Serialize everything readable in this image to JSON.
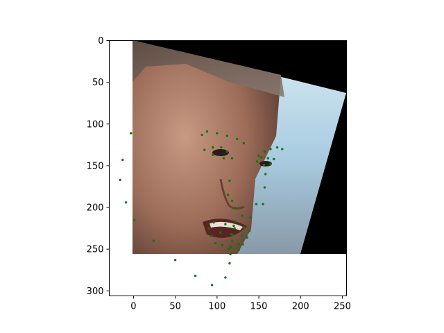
{
  "chart_data": {
    "type": "scatter",
    "title": "",
    "xlabel": "",
    "ylabel": "",
    "xlim": [
      -29,
      255
    ],
    "ylim": [
      306,
      0
    ],
    "y_inverted": true,
    "grid": false,
    "legend": "none",
    "x_ticks": [
      0,
      50,
      100,
      150,
      200,
      250
    ],
    "y_ticks": [
      0,
      50,
      100,
      150,
      200,
      250,
      300
    ],
    "background_image": {
      "description": "rotated face crop",
      "extent_x": [
        0,
        255
      ],
      "extent_y": [
        255,
        0
      ]
    },
    "marker_color": "#007f00",
    "series": [
      {
        "points": [
          [
            -3,
            111
          ],
          [
            -13,
            143
          ],
          [
            -16,
            167
          ],
          [
            -9,
            194
          ],
          [
            1,
            215
          ],
          [
            24,
            240
          ],
          [
            50,
            263
          ],
          [
            74,
            282
          ],
          [
            94,
            293
          ],
          [
            110,
            284
          ],
          [
            115,
            267
          ],
          [
            116,
            256
          ],
          [
            117,
            248
          ],
          [
            118,
            240
          ],
          [
            119,
            233
          ],
          [
            121,
            225
          ],
          [
            122,
            217
          ],
          [
            82,
            113
          ],
          [
            88,
            109
          ],
          [
            100,
            111
          ],
          [
            112,
            114
          ],
          [
            124,
            118
          ],
          [
            132,
            123
          ],
          [
            150,
            138
          ],
          [
            157,
            133
          ],
          [
            164,
            130
          ],
          [
            172,
            128
          ],
          [
            178,
            130
          ],
          [
            115,
            168
          ],
          [
            113,
            185
          ],
          [
            118,
            192
          ],
          [
            122,
            201
          ],
          [
            130,
            210
          ],
          [
            140,
            212
          ],
          [
            85,
            131
          ],
          [
            95,
            128
          ],
          [
            105,
            128
          ],
          [
            112,
            133
          ],
          [
            118,
            141
          ],
          [
            108,
            141
          ],
          [
            95,
            137
          ],
          [
            148,
            145
          ],
          [
            153,
            140
          ],
          [
            161,
            141
          ],
          [
            168,
            142
          ],
          [
            164,
            148
          ],
          [
            156,
            149
          ],
          [
            90,
            225
          ],
          [
            96,
            218
          ],
          [
            110,
            220
          ],
          [
            120,
            222
          ],
          [
            132,
            224
          ],
          [
            139,
            228
          ],
          [
            136,
            236
          ],
          [
            131,
            244
          ],
          [
            126,
            251
          ],
          [
            114,
            250
          ],
          [
            98,
            243
          ],
          [
            93,
            234
          ],
          [
            104,
            230
          ],
          [
            117,
            232
          ],
          [
            130,
            234
          ],
          [
            126,
            244
          ],
          [
            116,
            247
          ],
          [
            106,
            245
          ],
          [
            147,
            196
          ],
          [
            155,
            196
          ],
          [
            157,
            176
          ],
          [
            158,
            160
          ]
        ]
      }
    ]
  }
}
